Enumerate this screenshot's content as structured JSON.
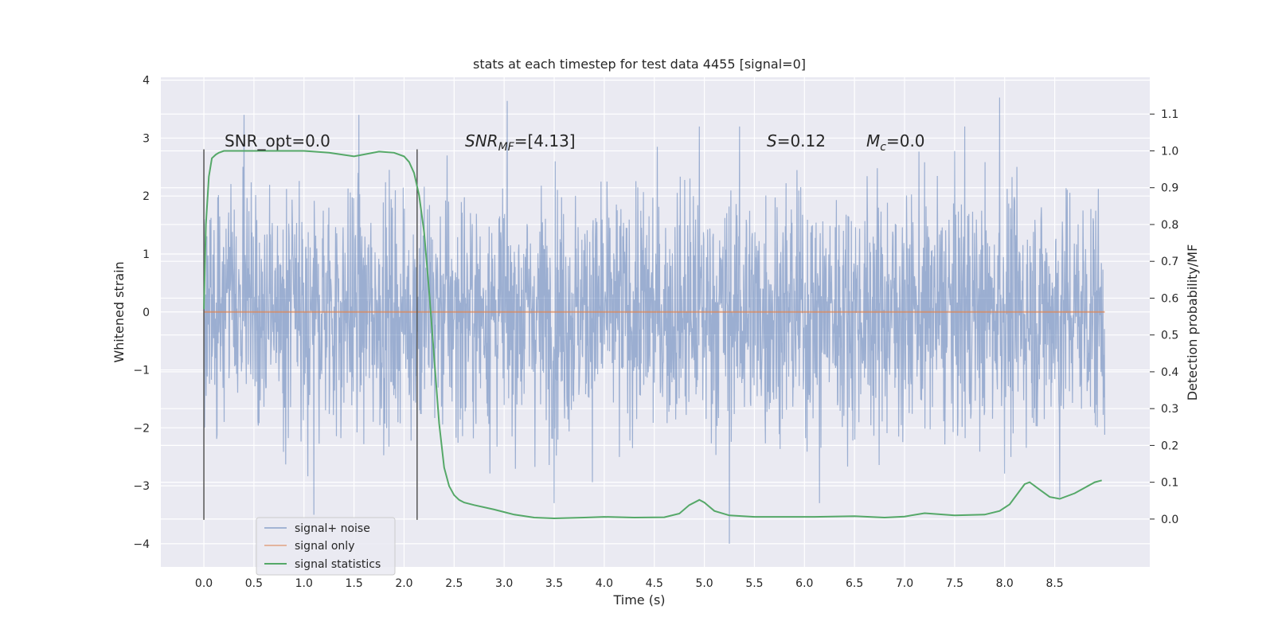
{
  "chart_data": {
    "type": "line",
    "title": "stats at each timestep for test data 4455 [signal=0]",
    "xlabel": "Time (s)",
    "ylabel": "Whitened strain",
    "y2label": "Detection probability/MF",
    "xlim": [
      -0.43,
      9.45
    ],
    "ylim": [
      -4.4,
      4.05
    ],
    "y2lim": [
      -0.13,
      1.2
    ],
    "xticks": [
      "0.0",
      "0.5",
      "1.0",
      "1.5",
      "2.0",
      "2.5",
      "3.0",
      "3.5",
      "4.0",
      "4.5",
      "5.0",
      "5.5",
      "6.0",
      "6.5",
      "7.0",
      "7.5",
      "8.0",
      "8.5"
    ],
    "yticks": [
      "4",
      "3",
      "2",
      "1",
      "0",
      "−1",
      "−2",
      "−3",
      "−4"
    ],
    "y2ticks": [
      "1.1",
      "1.0",
      "0.9",
      "0.8",
      "0.7",
      "0.6",
      "0.5",
      "0.4",
      "0.3",
      "0.2",
      "0.1",
      "0.0"
    ],
    "grid": true,
    "legend_position": "lower-left",
    "colors": {
      "background": "#eaeaf2",
      "grid": "#ffffff",
      "noise": "#4c72b0",
      "signal": "#dd8452",
      "statistics": "#55a868",
      "vlines": "#555555"
    },
    "annotations": {
      "snr_opt": "SNR_opt=0.0",
      "snr_mf_main": "SNR",
      "snr_mf_sub": "MF",
      "snr_mf_value": "=[4.13]",
      "s_var": "S",
      "s_value": "=0.12",
      "mc_var": "M",
      "mc_sub": "c",
      "mc_value": "=0.0"
    },
    "vertical_lines_x": [
      0.0,
      2.13
    ],
    "series": [
      {
        "name": "signal+ noise",
        "axis": "left",
        "x_range": [
          0.0,
          9.0
        ],
        "envelope_quantiles": [
          -1.8,
          1.9
        ],
        "peak_outliers": [
          [
            0.4,
            3.4
          ],
          [
            1.55,
            3.4
          ],
          [
            4.95,
            3.2
          ],
          [
            5.35,
            3.2
          ],
          [
            6.15,
            3.5
          ],
          [
            7.6,
            3.2
          ],
          [
            7.95,
            3.7
          ],
          [
            1.1,
            -3.5
          ],
          [
            5.25,
            -4.0
          ],
          [
            6.15,
            -3.3
          ],
          [
            3.5,
            -3.3
          ],
          [
            8.55,
            -3.2
          ]
        ]
      },
      {
        "name": "signal only",
        "axis": "left",
        "x": [
          0.0,
          9.0
        ],
        "y": [
          0.0,
          0.0
        ]
      },
      {
        "name": "signal statistics",
        "axis": "right",
        "x": [
          0.0,
          0.02,
          0.05,
          0.08,
          0.12,
          0.15,
          0.2,
          0.3,
          0.5,
          0.75,
          1.0,
          1.25,
          1.5,
          1.75,
          1.9,
          2.0,
          2.05,
          2.1,
          2.15,
          2.2,
          2.25,
          2.3,
          2.35,
          2.4,
          2.45,
          2.5,
          2.55,
          2.6,
          2.7,
          2.9,
          3.1,
          3.3,
          3.5,
          3.8,
          4.0,
          4.3,
          4.6,
          4.75,
          4.85,
          4.95,
          5.0,
          5.1,
          5.25,
          5.5,
          5.8,
          6.1,
          6.5,
          6.8,
          7.0,
          7.2,
          7.5,
          7.8,
          7.95,
          8.05,
          8.2,
          8.25,
          8.35,
          8.45,
          8.55,
          8.7,
          8.9,
          8.97
        ],
        "y": [
          0.57,
          0.8,
          0.93,
          0.98,
          0.99,
          0.995,
          1.0,
          1.0,
          1.0,
          1.0,
          1.0,
          0.995,
          0.985,
          0.998,
          0.995,
          0.985,
          0.97,
          0.94,
          0.88,
          0.78,
          0.62,
          0.44,
          0.26,
          0.14,
          0.09,
          0.065,
          0.052,
          0.045,
          0.038,
          0.026,
          0.012,
          0.004,
          0.002,
          0.004,
          0.006,
          0.004,
          0.005,
          0.015,
          0.038,
          0.052,
          0.045,
          0.022,
          0.01,
          0.006,
          0.006,
          0.006,
          0.008,
          0.004,
          0.007,
          0.016,
          0.01,
          0.012,
          0.022,
          0.04,
          0.095,
          0.1,
          0.08,
          0.06,
          0.055,
          0.07,
          0.1,
          0.105
        ]
      }
    ]
  }
}
